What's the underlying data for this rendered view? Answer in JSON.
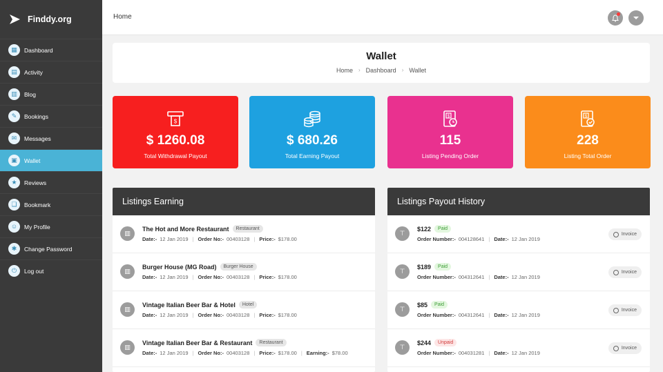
{
  "app": {
    "name": "Finddy.org"
  },
  "sidebar": {
    "items": [
      {
        "label": "Dashboard",
        "icon": "dashboard-icon",
        "glyph": "▦"
      },
      {
        "label": "Activity",
        "icon": "activity-icon",
        "glyph": "▤"
      },
      {
        "label": "Blog",
        "icon": "blog-icon",
        "glyph": "▥"
      },
      {
        "label": "Bookings",
        "icon": "bookings-icon",
        "glyph": "✎"
      },
      {
        "label": "Messages",
        "icon": "messages-icon",
        "glyph": "✉"
      },
      {
        "label": "Wallet",
        "icon": "wallet-icon",
        "glyph": "▣",
        "active": true
      },
      {
        "label": "Reviews",
        "icon": "star-icon",
        "glyph": "★"
      },
      {
        "label": "Bookmark",
        "icon": "bookmark-icon",
        "glyph": "❏"
      },
      {
        "label": "My Profile",
        "icon": "user-icon",
        "glyph": "☺"
      },
      {
        "label": "Change Password",
        "icon": "key-icon",
        "glyph": "✱"
      },
      {
        "label": "Log out",
        "icon": "power-icon",
        "glyph": "⏻"
      }
    ]
  },
  "topbar": {
    "breadcrumb": "Home"
  },
  "header": {
    "title": "Wallet",
    "breadcrumb": [
      "Home",
      "Dashboard",
      "Wallet"
    ]
  },
  "stats": [
    {
      "value": "$ 1260.08",
      "label": "Total Withdrawal Payout",
      "color": "#f71f1f",
      "icon": "atm-icon"
    },
    {
      "value": "$ 680.26",
      "label": "Total Earning Payout",
      "color": "#1ea1e0",
      "icon": "coins-icon"
    },
    {
      "value": "115",
      "label": "Listing Pending Order",
      "color": "#e9318f",
      "icon": "pending-order-icon"
    },
    {
      "value": "228",
      "label": "Listing Total Order",
      "color": "#fb8c1b",
      "icon": "total-order-icon"
    }
  ],
  "earnings": {
    "title": "Listings Earning",
    "rows": [
      {
        "name": "The Hot and More Restaurant",
        "tag": "Restaurant",
        "date_label": "Date:-",
        "date": "12 Jan 2019",
        "order_label": "Order No:-",
        "order": "00403128",
        "price_label": "Price:-",
        "price": "$178.00"
      },
      {
        "name": "Burger House (MG Road)",
        "tag": "Burger House",
        "date_label": "Date:-",
        "date": "12 Jan 2019",
        "order_label": "Order No:-",
        "order": "00403128",
        "price_label": "Price:-",
        "price": "$178.00"
      },
      {
        "name": "Vintage Italian Beer Bar & Hotel",
        "tag": "Hotel",
        "date_label": "Date:-",
        "date": "12 Jan 2019",
        "order_label": "Order No:-",
        "order": "00403128",
        "price_label": "Price:-",
        "price": "$178.00"
      },
      {
        "name": "Vintage Italian Beer Bar & Restaurant",
        "tag": "Restaurant",
        "date_label": "Date:-",
        "date": "12 Jan 2019",
        "order_label": "Order No:-",
        "order": "00403128",
        "price_label": "Price:-",
        "price": "$178.00",
        "earning_label": "Earning:-",
        "earning": "$78.00"
      }
    ]
  },
  "payouts": {
    "title": "Listings Payout History",
    "invoice_label": "Invoice",
    "rows": [
      {
        "amount": "$122",
        "status": "Paid",
        "number_label": "Order Number:-",
        "number": "004128641",
        "date_label": "Date:-",
        "date": "12 Jan 2019"
      },
      {
        "amount": "$189",
        "status": "Paid",
        "number_label": "Order Number:-",
        "number": "004312641",
        "date_label": "Date:-",
        "date": "12 Jan 2019"
      },
      {
        "amount": "$85",
        "status": "Paid",
        "number_label": "Order Number:-",
        "number": "004312641",
        "date_label": "Date:-",
        "date": "12 Jan 2019"
      },
      {
        "amount": "$244",
        "status": "Unpaid",
        "number_label": "Order Number:-",
        "number": "004031281",
        "date_label": "Date:-",
        "date": "12 Jan 2019"
      }
    ]
  }
}
